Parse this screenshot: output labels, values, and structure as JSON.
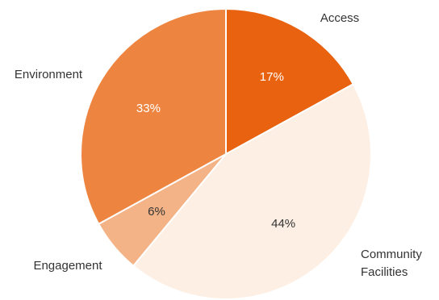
{
  "chart_data": {
    "type": "pie",
    "title": "",
    "start": "12 o'clock",
    "direction": "clockwise",
    "slices": [
      {
        "name": "Access",
        "label_lines": [
          "Access"
        ],
        "value": 17,
        "percent_label": "17%",
        "color": "#e8620f",
        "text_color": "#ffffff"
      },
      {
        "name": "Community Facilities",
        "label_lines": [
          "Community",
          "Facilities"
        ],
        "value": 44,
        "percent_label": "44%",
        "color": "#fdefe4",
        "text_color": "#333333"
      },
      {
        "name": "Engagement",
        "label_lines": [
          "Engagement"
        ],
        "value": 6,
        "percent_label": "6%",
        "color": "#f4b386",
        "text_color": "#333333"
      },
      {
        "name": "Environment",
        "label_lines": [
          "Environment"
        ],
        "value": 33,
        "percent_label": "33%",
        "color": "#ed8541",
        "text_color": "#ffffff"
      }
    ]
  }
}
